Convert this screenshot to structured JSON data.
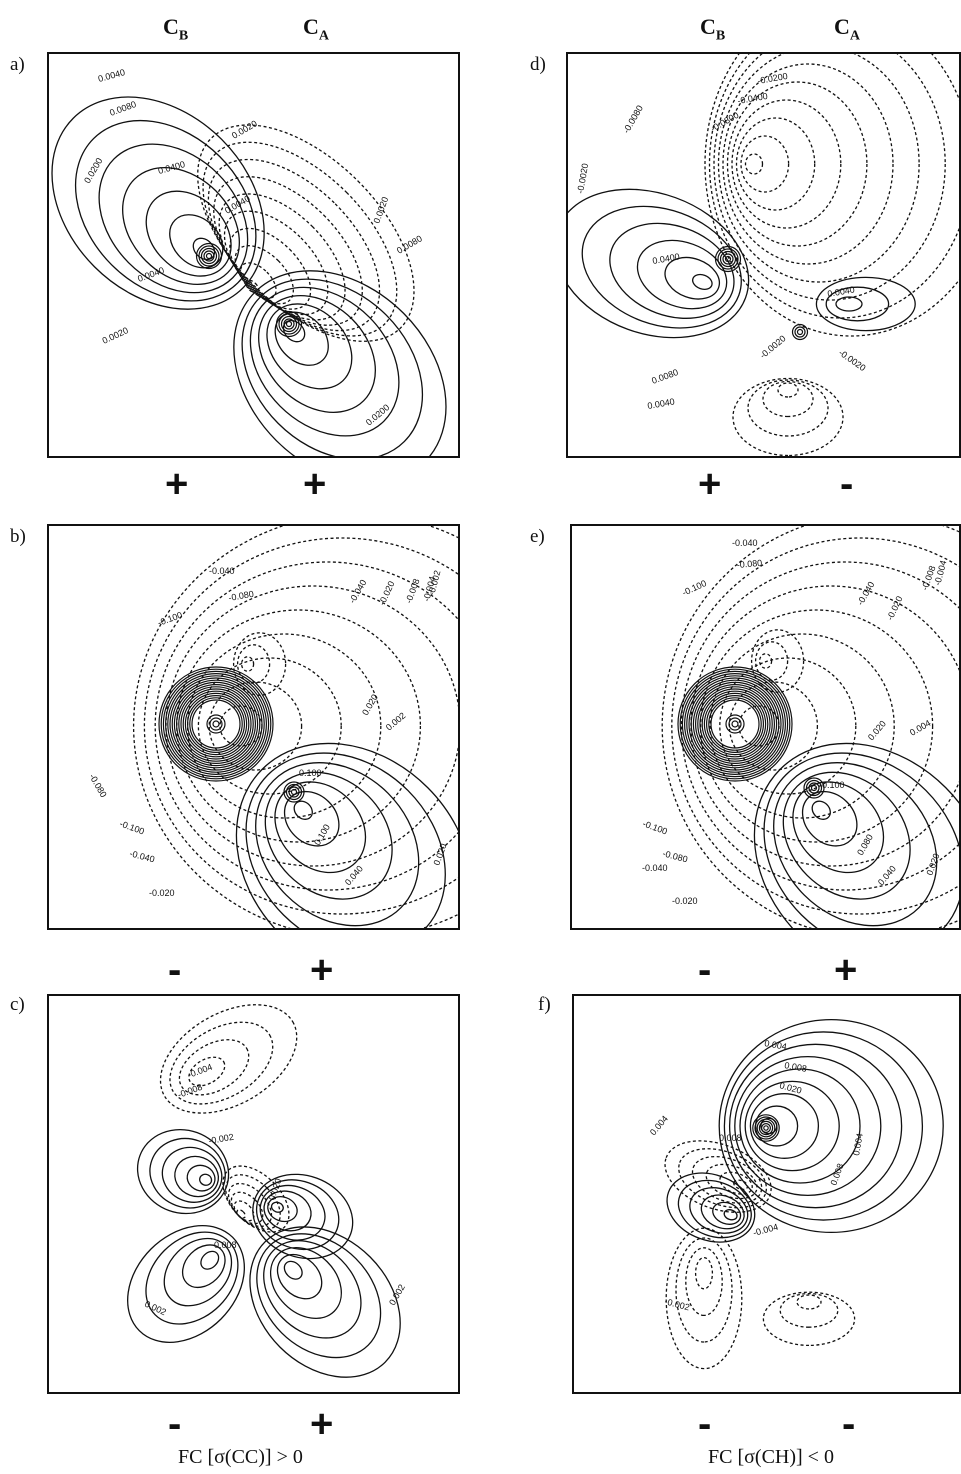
{
  "columns": {
    "left": {
      "cb": "C",
      "cb_sub": "B",
      "ca": "C",
      "ca_sub": "A"
    },
    "right": {
      "cb": "C",
      "cb_sub": "B",
      "ca": "C",
      "ca_sub": "A"
    }
  },
  "panels": [
    {
      "id": "a",
      "label": "a)",
      "sign_left": "+",
      "sign_right": "+",
      "contour_labels": [
        "0.0040",
        "0.0080",
        "0.0200",
        "0.0400",
        "0.0020",
        "0.0040",
        "0.0020",
        "0.0080",
        "0.0200",
        "0.0040",
        "0.0020"
      ]
    },
    {
      "id": "b",
      "label": "b)",
      "sign_left": "-",
      "sign_right": "+",
      "contour_labels": [
        "-0.040",
        "-0.080",
        "-0.100",
        "-0.040",
        "-0.020",
        "-0.008",
        "-0.004",
        "-0.002",
        "0.020",
        "0.002",
        "0.100",
        "0.100",
        "0.040",
        "0.020",
        "-0.100",
        "-0.080",
        "-0.040",
        "-0.020"
      ]
    },
    {
      "id": "c",
      "label": "c)",
      "sign_left": "-",
      "sign_right": "+",
      "contour_labels": [
        "-0.004",
        "-0.008",
        "-0.002",
        "0.008",
        "0.002",
        "0.002",
        "0.020"
      ]
    },
    {
      "id": "d",
      "label": "d)",
      "sign_left": "+",
      "sign_right": "-",
      "contour_labels": [
        "-0.0200",
        "-0.0400",
        "-0.0800",
        "-0.0080",
        "-0.0020",
        "0.0400",
        "0.0040",
        "-0.0020",
        "0.0080",
        "0.0040",
        "-0.0020"
      ]
    },
    {
      "id": "e",
      "label": "e)",
      "sign_left": "-",
      "sign_right": "+",
      "contour_labels": [
        "-0.040",
        "-0.080",
        "-0.100",
        "-0.040",
        "-0.020",
        "-0.008",
        "-0.004",
        "0.020",
        "0.004",
        "0.100",
        "0.080",
        "0.040",
        "0.020",
        "-0.100",
        "-0.080",
        "-0.040",
        "-0.020"
      ]
    },
    {
      "id": "f",
      "label": "f)",
      "sign_left": "-",
      "sign_right": "-",
      "contour_labels": [
        "0.004",
        "0.008",
        "0.020",
        "0.004",
        "0.004",
        "0.008",
        "0.008",
        "-0.004",
        "-0.002"
      ]
    }
  ],
  "captions": {
    "left": "FC [σ(CC)] > 0",
    "right": "FC [σ(CH)] < 0"
  }
}
